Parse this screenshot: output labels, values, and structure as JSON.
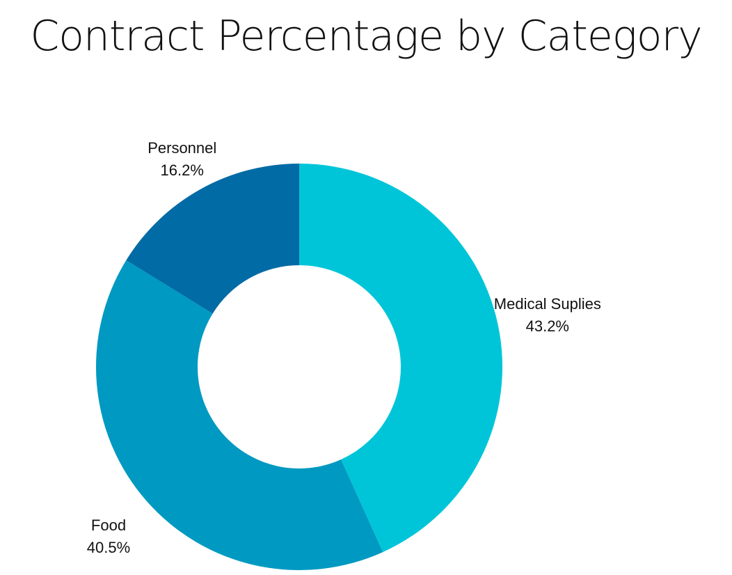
{
  "chart_data": {
    "type": "pie",
    "title": "Contract Percentage by Category",
    "donut": true,
    "slices": [
      {
        "label": "Medical Suplies",
        "percent_label": "43.2%",
        "value": 43.2,
        "color": "#00C5D8"
      },
      {
        "label": "Food",
        "percent_label": "40.5%",
        "value": 40.5,
        "color": "#0099C1"
      },
      {
        "label": "Personnel",
        "percent_label": "16.2%",
        "value": 16.2,
        "color": "#006BA5"
      }
    ]
  }
}
